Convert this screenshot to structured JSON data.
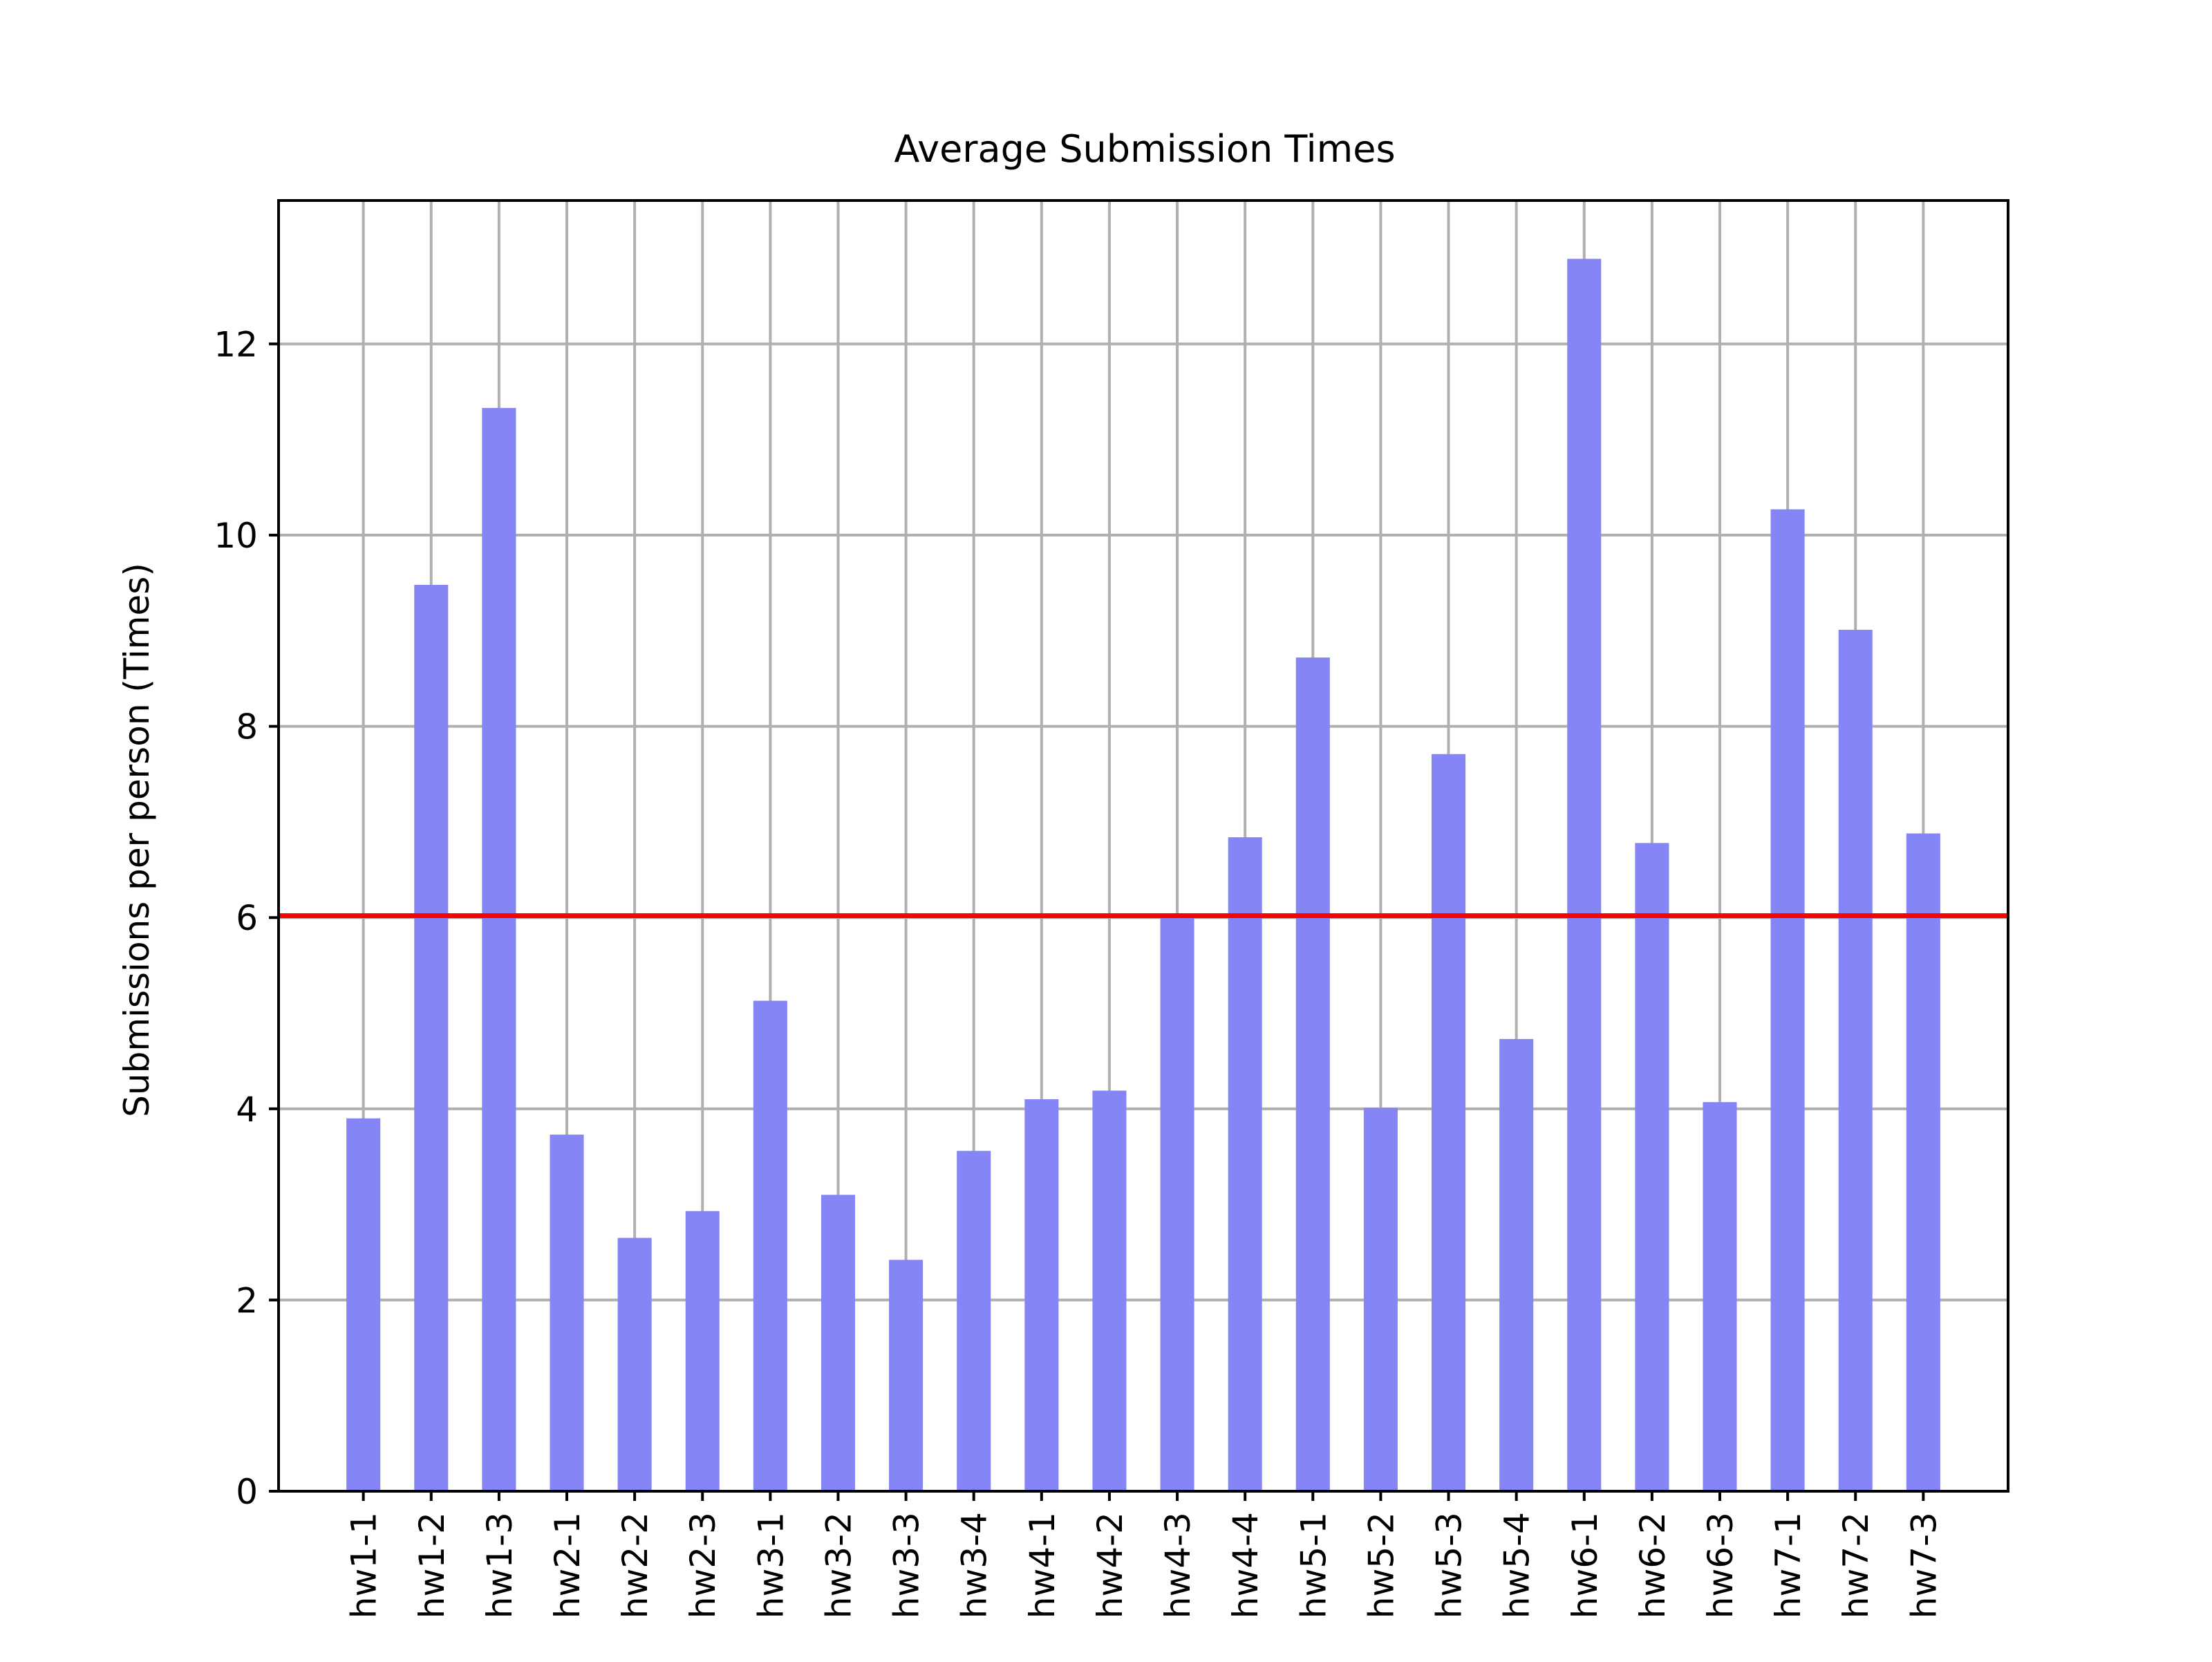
{
  "chart_data": {
    "type": "bar",
    "title": "Average Submission Times",
    "xlabel": "",
    "ylabel": "Submissions per person (Times)",
    "categories": [
      "hw1-1",
      "hw1-2",
      "hw1-3",
      "hw2-1",
      "hw2-2",
      "hw2-3",
      "hw3-1",
      "hw3-2",
      "hw3-3",
      "hw3-4",
      "hw4-1",
      "hw4-2",
      "hw4-3",
      "hw4-4",
      "hw5-1",
      "hw5-2",
      "hw5-3",
      "hw5-4",
      "hw6-1",
      "hw6-2",
      "hw6-3",
      "hw7-1",
      "hw7-2",
      "hw7-3"
    ],
    "values": [
      3.9,
      9.48,
      11.33,
      3.73,
      2.65,
      2.93,
      5.13,
      3.1,
      2.42,
      3.56,
      4.1,
      4.19,
      6.03,
      6.84,
      8.72,
      4.01,
      7.71,
      4.73,
      12.89,
      6.78,
      4.07,
      10.27,
      9.01,
      6.88
    ],
    "yticks": [
      "0",
      "2",
      "4",
      "6",
      "8",
      "10",
      "12"
    ],
    "ylim": [
      0,
      13.5
    ],
    "reference_line": 6.02,
    "grid": true,
    "colors": {
      "bar": "#8585f5",
      "reference_line": "#ff0000",
      "grid": "#b0b0b0",
      "axes": "#000000"
    }
  }
}
